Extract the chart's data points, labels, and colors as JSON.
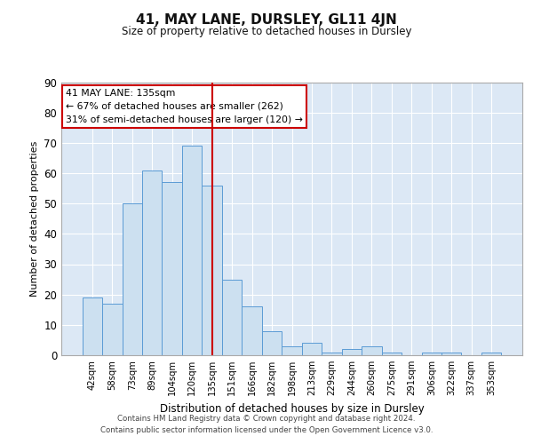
{
  "title": "41, MAY LANE, DURSLEY, GL11 4JN",
  "subtitle": "Size of property relative to detached houses in Dursley",
  "xlabel": "Distribution of detached houses by size in Dursley",
  "ylabel": "Number of detached properties",
  "categories": [
    "42sqm",
    "58sqm",
    "73sqm",
    "89sqm",
    "104sqm",
    "120sqm",
    "135sqm",
    "151sqm",
    "166sqm",
    "182sqm",
    "198sqm",
    "213sqm",
    "229sqm",
    "244sqm",
    "260sqm",
    "275sqm",
    "291sqm",
    "306sqm",
    "322sqm",
    "337sqm",
    "353sqm"
  ],
  "values": [
    19,
    17,
    50,
    61,
    57,
    69,
    56,
    25,
    16,
    8,
    3,
    4,
    1,
    2,
    3,
    1,
    0,
    1,
    1,
    0,
    1
  ],
  "bar_color": "#cce0f0",
  "bar_edge_color": "#5b9bd5",
  "highlight_index": 6,
  "highlight_line_color": "#cc0000",
  "annotation_line1": "41 MAY LANE: 135sqm",
  "annotation_line2": "← 67% of detached houses are smaller (262)",
  "annotation_line3": "31% of semi-detached houses are larger (120) →",
  "annotation_box_color": "#ffffff",
  "annotation_box_edge_color": "#cc0000",
  "ylim": [
    0,
    90
  ],
  "yticks": [
    0,
    10,
    20,
    30,
    40,
    50,
    60,
    70,
    80,
    90
  ],
  "background_color": "#dce8f5",
  "grid_color": "#ffffff",
  "footer_line1": "Contains HM Land Registry data © Crown copyright and database right 2024.",
  "footer_line2": "Contains public sector information licensed under the Open Government Licence v3.0."
}
